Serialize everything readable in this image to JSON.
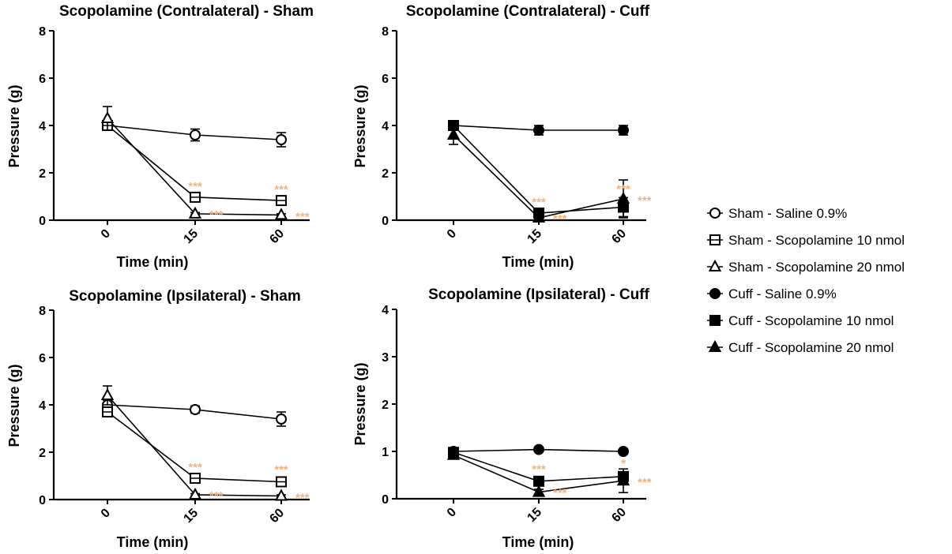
{
  "chart_data": [
    {
      "type": "line",
      "title": "Scopolamine (Contralateral) - Sham",
      "xlabel": "Time (min)",
      "ylabel": "Pressure (g)",
      "categories": [
        "0",
        "15",
        "60"
      ],
      "yticks": [
        "0",
        "2",
        "4",
        "6",
        "8"
      ],
      "ylim": [
        0,
        8
      ],
      "series": [
        {
          "name": "Sham - Saline 0.9%",
          "values": [
            4.0,
            3.6,
            3.4
          ],
          "errors": [
            0.2,
            0.25,
            0.3
          ]
        },
        {
          "name": "Sham - Scopolamine 10 nmol",
          "values": [
            4.0,
            0.97,
            0.83
          ],
          "errors": [
            0.1,
            0.1,
            0.1
          ]
        },
        {
          "name": "Sham - Scopolamine 20 nmol",
          "values": [
            4.3,
            0.27,
            0.22
          ],
          "errors": [
            0.5,
            0.05,
            0.05
          ]
        }
      ],
      "annotations": [
        {
          "series": 1,
          "point": 1,
          "text": "***"
        },
        {
          "series": 1,
          "point": 2,
          "text": "***"
        },
        {
          "series": 2,
          "point": 1,
          "text": "***"
        },
        {
          "series": 2,
          "point": 2,
          "text": "***"
        }
      ]
    },
    {
      "type": "line",
      "title": "Scopolamine (Contralateral) - Cuff",
      "xlabel": "Time (min)",
      "ylabel": "Pressure (g)",
      "categories": [
        "0",
        "15",
        "60"
      ],
      "yticks": [
        "0",
        "2",
        "4",
        "6",
        "8"
      ],
      "ylim": [
        0,
        8
      ],
      "series": [
        {
          "name": "Cuff - Saline 0.9%",
          "values": [
            4.0,
            3.8,
            3.8
          ],
          "errors": [
            0.1,
            0.2,
            0.2
          ]
        },
        {
          "name": "Cuff - Scopolamine 10 nmol",
          "values": [
            4.0,
            0.3,
            0.55
          ],
          "errors": [
            0.1,
            0.1,
            0.4
          ]
        },
        {
          "name": "Cuff - Scopolamine 20 nmol",
          "values": [
            3.6,
            0.1,
            0.9
          ],
          "errors": [
            0.4,
            0.05,
            0.8
          ]
        }
      ],
      "annotations": [
        {
          "series": 1,
          "point": 1,
          "text": "***"
        },
        {
          "series": 1,
          "point": 2,
          "text": "***"
        },
        {
          "series": 2,
          "point": 1,
          "text": "***"
        },
        {
          "series": 2,
          "point": 2,
          "text": "***"
        }
      ]
    },
    {
      "type": "line",
      "title": "Scopolamine (Ipsilateral) - Sham",
      "xlabel": "Time (min)",
      "ylabel": "Pressure (g)",
      "categories": [
        "0",
        "15",
        "60"
      ],
      "yticks": [
        "0",
        "2",
        "4",
        "6",
        "8"
      ],
      "ylim": [
        0,
        8
      ],
      "series": [
        {
          "name": "Sham - Saline 0.9%",
          "values": [
            4.0,
            3.8,
            3.4
          ],
          "errors": [
            0.2,
            0.15,
            0.3
          ]
        },
        {
          "name": "Sham - Scopolamine 10 nmol",
          "values": [
            3.7,
            0.9,
            0.75
          ],
          "errors": [
            0.1,
            0.1,
            0.15
          ]
        },
        {
          "name": "Sham - Scopolamine 20 nmol",
          "values": [
            4.4,
            0.2,
            0.15
          ],
          "errors": [
            0.4,
            0.05,
            0.05
          ]
        }
      ],
      "annotations": [
        {
          "series": 1,
          "point": 1,
          "text": "***"
        },
        {
          "series": 1,
          "point": 2,
          "text": "***"
        },
        {
          "series": 2,
          "point": 1,
          "text": "***"
        },
        {
          "series": 2,
          "point": 2,
          "text": "***"
        }
      ]
    },
    {
      "type": "line",
      "title": "Scopolamine (Ipsilateral) - Cuff",
      "xlabel": "Time (min)",
      "ylabel": "Pressure (g)",
      "categories": [
        "0",
        "15",
        "60"
      ],
      "yticks": [
        "0",
        "1",
        "2",
        "3",
        "4"
      ],
      "ylim": [
        0,
        4
      ],
      "series": [
        {
          "name": "Cuff - Saline 0.9%",
          "values": [
            1.0,
            1.04,
            1.0
          ],
          "errors": [
            0.05,
            0.03,
            0.05
          ]
        },
        {
          "name": "Cuff - Scopolamine 10 nmol",
          "values": [
            0.98,
            0.37,
            0.47
          ],
          "errors": [
            0.05,
            0.07,
            0.1
          ]
        },
        {
          "name": "Cuff - Scopolamine 20 nmol",
          "values": [
            0.92,
            0.14,
            0.38
          ],
          "errors": [
            0.05,
            0.06,
            0.25
          ]
        }
      ],
      "annotations": [
        {
          "series": 1,
          "point": 1,
          "text": "***"
        },
        {
          "series": 1,
          "point": 2,
          "text": "*"
        },
        {
          "series": 2,
          "point": 1,
          "text": "***"
        },
        {
          "series": 2,
          "point": 2,
          "text": "***"
        }
      ]
    }
  ],
  "legend": {
    "placement": "right",
    "items": [
      {
        "label": "Sham - Saline 0.9%",
        "marker": "circle",
        "fill": "open"
      },
      {
        "label": "Sham - Scopolamine 10 nmol",
        "marker": "square",
        "fill": "open"
      },
      {
        "label": "Sham - Scopolamine 20 nmol",
        "marker": "triangle",
        "fill": "open"
      },
      {
        "label": "Cuff - Saline 0.9%",
        "marker": "circle",
        "fill": "filled"
      },
      {
        "label": "Cuff - Scopolamine 10 nmol",
        "marker": "square",
        "fill": "filled"
      },
      {
        "label": "Cuff - Scopolamine 20 nmol",
        "marker": "triangle",
        "fill": "filled"
      }
    ]
  },
  "colors": {
    "line": "#000000",
    "significance": "#f2b27e"
  }
}
